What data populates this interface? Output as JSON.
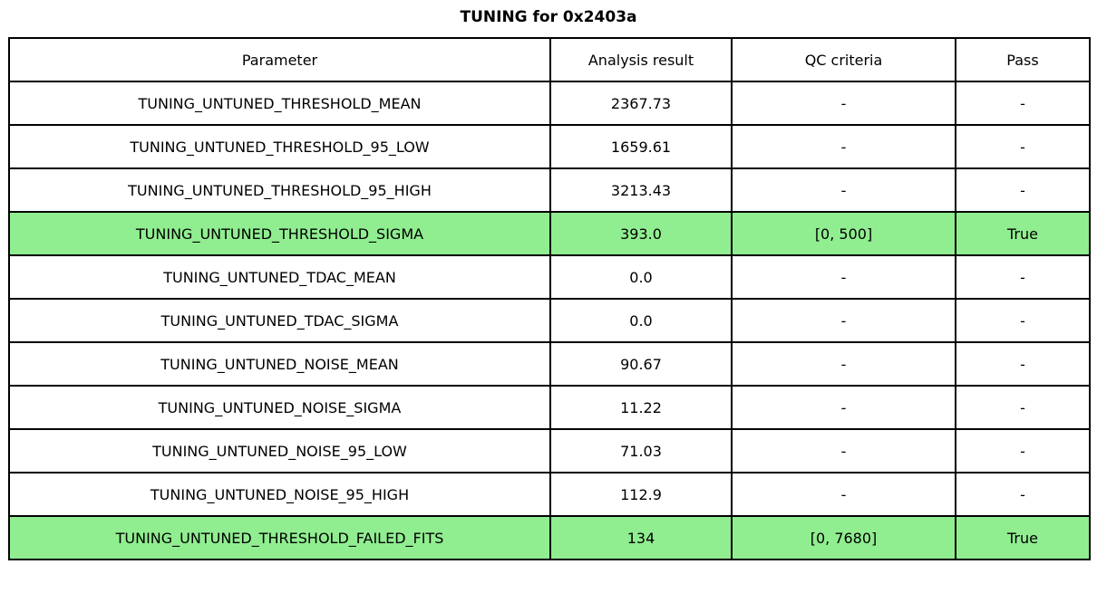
{
  "title": "TUNING for 0x2403a",
  "colors": {
    "highlight_green": "#90ee90",
    "border": "#000000",
    "background": "#ffffff",
    "text": "#000000"
  },
  "table": {
    "headers": [
      "Parameter",
      "Analysis result",
      "QC criteria",
      "Pass"
    ],
    "rows": [
      {
        "param": "TUNING_UNTUNED_THRESHOLD_MEAN",
        "result": "2367.73",
        "qc": "-",
        "pass": "-",
        "highlight": false
      },
      {
        "param": "TUNING_UNTUNED_THRESHOLD_95_LOW",
        "result": "1659.61",
        "qc": "-",
        "pass": "-",
        "highlight": false
      },
      {
        "param": "TUNING_UNTUNED_THRESHOLD_95_HIGH",
        "result": "3213.43",
        "qc": "-",
        "pass": "-",
        "highlight": false
      },
      {
        "param": "TUNING_UNTUNED_THRESHOLD_SIGMA",
        "result": "393.0",
        "qc": "[0, 500]",
        "pass": "True",
        "highlight": true
      },
      {
        "param": "TUNING_UNTUNED_TDAC_MEAN",
        "result": "0.0",
        "qc": "-",
        "pass": "-",
        "highlight": false
      },
      {
        "param": "TUNING_UNTUNED_TDAC_SIGMA",
        "result": "0.0",
        "qc": "-",
        "pass": "-",
        "highlight": false
      },
      {
        "param": "TUNING_UNTUNED_NOISE_MEAN",
        "result": "90.67",
        "qc": "-",
        "pass": "-",
        "highlight": false
      },
      {
        "param": "TUNING_UNTUNED_NOISE_SIGMA",
        "result": "11.22",
        "qc": "-",
        "pass": "-",
        "highlight": false
      },
      {
        "param": "TUNING_UNTUNED_NOISE_95_LOW",
        "result": "71.03",
        "qc": "-",
        "pass": "-",
        "highlight": false
      },
      {
        "param": "TUNING_UNTUNED_NOISE_95_HIGH",
        "result": "112.9",
        "qc": "-",
        "pass": "-",
        "highlight": false
      },
      {
        "param": "TUNING_UNTUNED_THRESHOLD_FAILED_FITS",
        "result": "134",
        "qc": "[0, 7680]",
        "pass": "True",
        "highlight": true
      }
    ]
  },
  "chart_data": {
    "type": "table",
    "title": "TUNING for 0x2403a",
    "columns": [
      "Parameter",
      "Analysis result",
      "QC criteria",
      "Pass"
    ],
    "rows": [
      [
        "TUNING_UNTUNED_THRESHOLD_MEAN",
        "2367.73",
        "-",
        "-"
      ],
      [
        "TUNING_UNTUNED_THRESHOLD_95_LOW",
        "1659.61",
        "-",
        "-"
      ],
      [
        "TUNING_UNTUNED_THRESHOLD_95_HIGH",
        "3213.43",
        "-",
        "-"
      ],
      [
        "TUNING_UNTUNED_THRESHOLD_SIGMA",
        "393.0",
        "[0, 500]",
        "True"
      ],
      [
        "TUNING_UNTUNED_TDAC_MEAN",
        "0.0",
        "-",
        "-"
      ],
      [
        "TUNING_UNTUNED_TDAC_SIGMA",
        "0.0",
        "-",
        "-"
      ],
      [
        "TUNING_UNTUNED_NOISE_MEAN",
        "90.67",
        "-",
        "-"
      ],
      [
        "TUNING_UNTUNED_NOISE_SIGMA",
        "11.22",
        "-",
        "-"
      ],
      [
        "TUNING_UNTUNED_NOISE_95_LOW",
        "71.03",
        "-",
        "-"
      ],
      [
        "TUNING_UNTUNED_NOISE_95_HIGH",
        "112.9",
        "-",
        "-"
      ],
      [
        "TUNING_UNTUNED_THRESHOLD_FAILED_FITS",
        "134",
        "[0, 7680]",
        "True"
      ]
    ],
    "highlighted_row_indices": [
      3,
      10
    ],
    "highlight_color": "#90ee90",
    "layout": {
      "grid": true,
      "cell_text_align": "center",
      "title_position": "top-center"
    }
  }
}
